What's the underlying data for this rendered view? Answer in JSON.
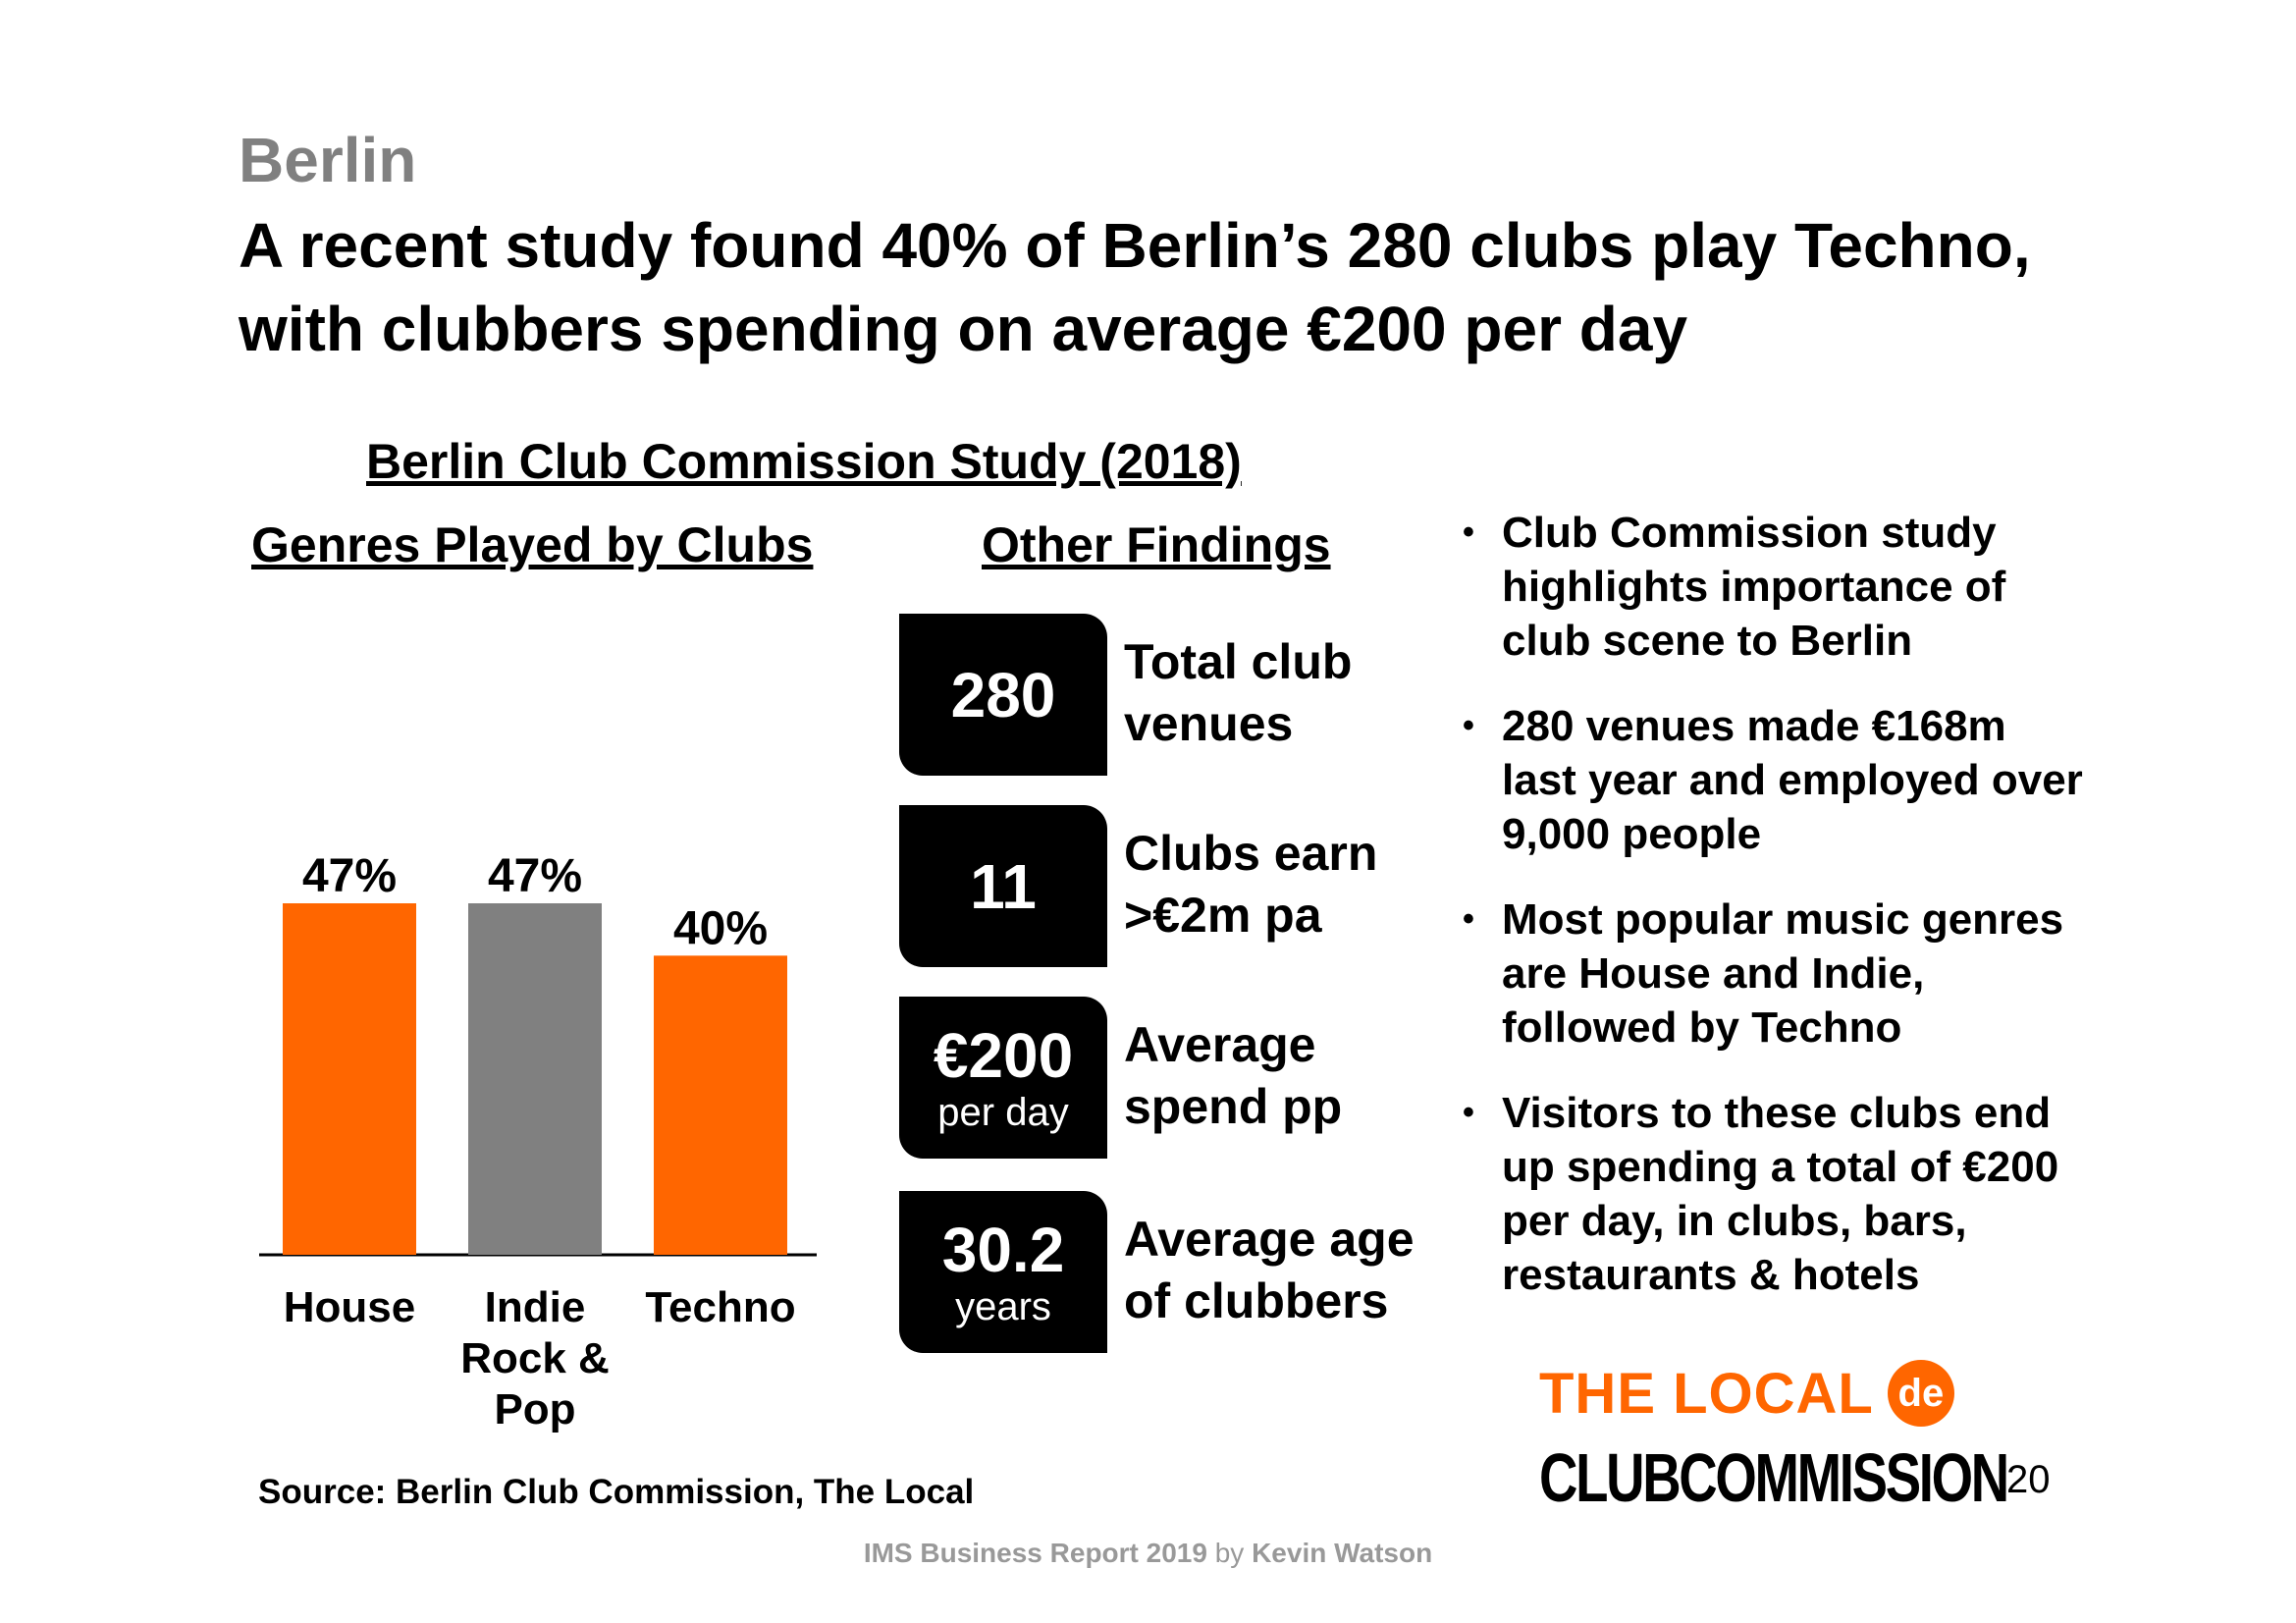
{
  "slide": {
    "kicker": "Berlin",
    "headline": "A recent study found 40% of Berlin’s 280 clubs play Techno, with clubbers spending on average €200 per day",
    "study_title": "Berlin Club Commission Study (2018)",
    "genres_title": "Genres Played by Clubs",
    "findings_title": "Other Findings"
  },
  "chart_data": {
    "type": "bar",
    "title": "Genres Played by Clubs",
    "categories": [
      "House",
      "Indie Rock & Pop",
      "Techno"
    ],
    "category_lines": [
      [
        "House"
      ],
      [
        "Indie",
        "Rock &",
        "Pop"
      ],
      [
        "Techno"
      ]
    ],
    "values": [
      47,
      47,
      40
    ],
    "data_labels": [
      "47%",
      "47%",
      "40%"
    ],
    "colors": [
      "#FF6600",
      "#808080",
      "#FF6600"
    ],
    "ylim": [
      0,
      47
    ],
    "grid": false,
    "xlabel": "",
    "ylabel": ""
  },
  "findings": [
    {
      "value": "280",
      "sub": "",
      "label_lines": [
        "Total club",
        "venues"
      ]
    },
    {
      "value": "11",
      "sub": "",
      "label_lines": [
        "Clubs earn",
        ">€2m pa"
      ]
    },
    {
      "value": "€200",
      "sub": "per day",
      "label_lines": [
        "Average",
        "spend pp"
      ]
    },
    {
      "value": "30.2",
      "sub": "years",
      "label_lines": [
        "Average age",
        "of clubbers"
      ]
    }
  ],
  "bullets": [
    "Club Commission study highlights importance of club scene to Berlin",
    "280 venues made €168m last year and employed over 9,000 people",
    "Most popular music genres are House and Indie, followed by Techno",
    "Visitors to these clubs end up spending a total of €200 per day, in clubs, bars, restaurants & hotels"
  ],
  "bullet_char": "•",
  "logos": {
    "the_local": "THE LOCAL",
    "the_local_badge": "de",
    "club_commission": "CLUBCOMMISSION"
  },
  "page_number": "20",
  "source": "Source: Berlin Club Commission, The Local",
  "footer": {
    "report": "IMS Business Report 2019",
    "by": "by",
    "author": "Kevin Watson"
  },
  "colors": {
    "accent": "#FF6600",
    "grey": "#808080"
  }
}
